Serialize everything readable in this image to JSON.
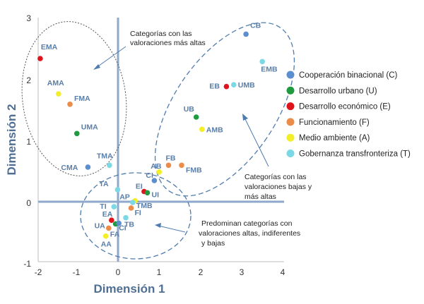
{
  "chart_data": {
    "type": "scatter",
    "title": "",
    "xlabel": "Dimensión 1",
    "ylabel": "Dimensión 2",
    "xlim": [
      -2,
      4
    ],
    "ylim": [
      -1,
      3
    ],
    "xticks": [
      "-2",
      "-1",
      "0",
      "1",
      "2",
      "3",
      "4"
    ],
    "yticks": [
      "-1",
      "0",
      "1",
      "2",
      "3"
    ],
    "grid": false,
    "legend_position": "right",
    "categories_legend": [
      {
        "key": "C",
        "name": "Cooperación binacional (C)",
        "color": "#5b8fd0"
      },
      {
        "key": "U",
        "name": "Desarrollo urbano (U)",
        "color": "#1f9a3f"
      },
      {
        "key": "E",
        "name": "Desarrollo económico (E)",
        "color": "#e0131a"
      },
      {
        "key": "F",
        "name": "Funcionamiento (F)",
        "color": "#ec8c4a"
      },
      {
        "key": "A",
        "name": "Medio ambiente (A)",
        "color": "#f2ee28"
      },
      {
        "key": "T",
        "name": "Gobernanza transfronteriza (T)",
        "color": "#7bd8e4"
      }
    ],
    "points": [
      {
        "label": "CB",
        "x": 3.1,
        "y": 2.73,
        "group": "C"
      },
      {
        "label": "EMB",
        "x": 3.5,
        "y": 2.28,
        "group": "T"
      },
      {
        "label": "EB",
        "x": 2.62,
        "y": 1.87,
        "group": "E"
      },
      {
        "label": "UMB",
        "x": 2.8,
        "y": 1.9,
        "group": "T"
      },
      {
        "label": "UB",
        "x": 1.88,
        "y": 1.37,
        "group": "U"
      },
      {
        "label": "AMB",
        "x": 2.02,
        "y": 1.17,
        "group": "A"
      },
      {
        "label": "FB",
        "x": 1.2,
        "y": 0.58,
        "group": "F"
      },
      {
        "label": "FMB",
        "x": 1.52,
        "y": 0.58,
        "group": "F"
      },
      {
        "label": "AB",
        "x": 0.97,
        "y": 0.47,
        "group": "A"
      },
      {
        "label": "CI",
        "x": 0.85,
        "y": 0.33,
        "group": "C"
      },
      {
        "label": "EI",
        "x": 0.6,
        "y": 0.15,
        "group": "E"
      },
      {
        "label": "UI",
        "x": 0.68,
        "y": 0.13,
        "group": "U"
      },
      {
        "label": "AP",
        "x": 0.38,
        "y": 0.0,
        "group": "A"
      },
      {
        "label": "TMB",
        "x": 0.32,
        "y": -0.03,
        "group": "T"
      },
      {
        "label": "FI",
        "x": 0.28,
        "y": -0.12,
        "group": "F"
      },
      {
        "label": "TB",
        "x": 0.15,
        "y": -0.28,
        "group": "T"
      },
      {
        "label": "TI",
        "x": -0.14,
        "y": -0.1,
        "group": "T"
      },
      {
        "label": "EA",
        "x": -0.2,
        "y": -0.32,
        "group": "E"
      },
      {
        "label": "UA",
        "x": -0.1,
        "y": -0.38,
        "group": "U"
      },
      {
        "label": "CI",
        "x": -0.02,
        "y": -0.37,
        "group": "C"
      },
      {
        "label": "FA",
        "x": -0.27,
        "y": -0.45,
        "group": "F"
      },
      {
        "label": "AA",
        "x": -0.34,
        "y": -0.58,
        "group": "A"
      },
      {
        "label": "TA",
        "x": -0.05,
        "y": 0.18,
        "group": "T"
      },
      {
        "label": "TMA",
        "x": -0.25,
        "y": 0.58,
        "group": "T"
      },
      {
        "label": "CMA",
        "x": -0.78,
        "y": 0.55,
        "group": "C"
      },
      {
        "label": "UMA",
        "x": -1.05,
        "y": 1.1,
        "group": "U"
      },
      {
        "label": "FMA",
        "x": -1.22,
        "y": 1.58,
        "group": "F"
      },
      {
        "label": "AMA",
        "x": -1.5,
        "y": 1.75,
        "group": "A"
      },
      {
        "label": "EMA",
        "x": -1.95,
        "y": 2.33,
        "group": "E"
      }
    ],
    "annotations": [
      {
        "lines": [
          "Categorías con las",
          "valoraciones más altas"
        ]
      },
      {
        "lines": [
          "Categorías con las",
          "valoraciones bajas y",
          "más altas"
        ]
      },
      {
        "lines": [
          "Predominan categorías con",
          " valoraciones altas, indiferentes",
          "y bajas"
        ]
      }
    ]
  },
  "colors": {
    "axis_blue": "#8ea9cc",
    "axis_title": "#4f6f95",
    "ellipse_dashed": "#4f7cae",
    "ellipse_dotted": "#555555"
  }
}
